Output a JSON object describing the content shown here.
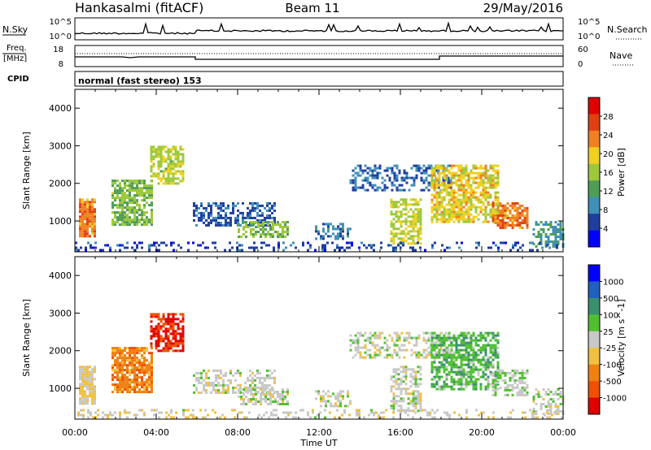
{
  "header": {
    "station": "Hankasalmi (fitACF)",
    "beam": "Beam 11",
    "date": "29/May/2016"
  },
  "panels": {
    "nsky": {
      "label": "N.Sky",
      "ytop": "10^5",
      "ybottom": "10^0",
      "right_label": "N.Search",
      "right_top": "10^5",
      "right_bottom": "10^0"
    },
    "freq": {
      "label_top": "Freq.",
      "label_unit": "[MHz]",
      "ytop": "18",
      "ybottom": "8",
      "right_label": "Nave",
      "right_top": "60",
      "right_bottom": "0"
    },
    "cpid": {
      "label": "CPID",
      "text": "normal (fast stereo) 153"
    }
  },
  "time_axis": {
    "title": "Time UT",
    "ticks": [
      "00:00",
      "04:00",
      "08:00",
      "12:00",
      "16:00",
      "20:00",
      "00:00"
    ]
  },
  "colors": {
    "power": [
      "#0000ff",
      "#1e3ea0",
      "#3f8fb8",
      "#4f9e58",
      "#9dc83a",
      "#f0d020",
      "#f08020",
      "#e04010",
      "#e00000"
    ],
    "velocity": [
      "#0000ff",
      "#2060c0",
      "#3a8f6e",
      "#50c030",
      "#c8c8c8",
      "#f0c040",
      "#f08010",
      "#f05000",
      "#e00000"
    ]
  },
  "chart_data": [
    {
      "type": "heatmap",
      "name": "power",
      "ylabel": "Slant Range [km]",
      "xlabel": "",
      "yticks": [
        "1000",
        "2000",
        "3000",
        "4000"
      ],
      "xlim_hours": [
        0,
        24
      ],
      "ylim_km": [
        180,
        4500
      ],
      "colorbar": {
        "title": "Power [dB]",
        "ticks": [
          "4",
          "8",
          "12",
          "16",
          "20",
          "24",
          "28"
        ],
        "range": [
          0,
          30
        ]
      },
      "blobs": [
        {
          "t0": 0.2,
          "t1": 1.0,
          "r0": 600,
          "r1": 1600,
          "v": 22,
          "d": 0.9
        },
        {
          "t0": 1.8,
          "t1": 3.8,
          "r0": 900,
          "r1": 2100,
          "v": 14,
          "d": 0.75
        },
        {
          "t0": 3.7,
          "t1": 5.3,
          "r0": 2000,
          "r1": 3000,
          "v": 16,
          "d": 0.7
        },
        {
          "t0": 5.8,
          "t1": 9.8,
          "r0": 900,
          "r1": 1500,
          "v": 6,
          "d": 0.5
        },
        {
          "t0": 8.0,
          "t1": 10.5,
          "r0": 600,
          "r1": 1000,
          "v": 14,
          "d": 0.6
        },
        {
          "t0": 11.8,
          "t1": 13.5,
          "r0": 500,
          "r1": 950,
          "v": 8,
          "d": 0.45
        },
        {
          "t0": 15.5,
          "t1": 17.0,
          "r0": 400,
          "r1": 1600,
          "v": 16,
          "d": 0.65
        },
        {
          "t0": 13.5,
          "t1": 18.5,
          "r0": 1800,
          "r1": 2500,
          "v": 7,
          "d": 0.45
        },
        {
          "t0": 17.5,
          "t1": 20.8,
          "r0": 1000,
          "r1": 2500,
          "v": 18,
          "d": 0.7
        },
        {
          "t0": 20.5,
          "t1": 22.2,
          "r0": 800,
          "r1": 1500,
          "v": 22,
          "d": 0.65
        },
        {
          "t0": 22.5,
          "t1": 24.0,
          "r0": 300,
          "r1": 1000,
          "v": 10,
          "d": 0.45
        },
        {
          "t0": 0.0,
          "t1": 24.0,
          "r0": 200,
          "r1": 450,
          "v": 5,
          "d": 0.25
        }
      ]
    },
    {
      "type": "heatmap",
      "name": "velocity",
      "ylabel": "Slant Range [km]",
      "xlabel": "Time UT",
      "yticks": [
        "1000",
        "2000",
        "3000",
        "4000"
      ],
      "xlim_hours": [
        0,
        24
      ],
      "ylim_km": [
        180,
        4500
      ],
      "colorbar": {
        "title": "Velocity [m s^-1]",
        "ticks": [
          "1000",
          "500",
          "100",
          "25",
          "-25",
          "-100",
          "-500",
          "-1000"
        ],
        "range": [
          -1000,
          1000
        ]
      },
      "blobs": [
        {
          "t0": 0.2,
          "t1": 1.0,
          "r0": 600,
          "r1": 1600,
          "v": -150,
          "d": 0.85
        },
        {
          "t0": 1.8,
          "t1": 3.8,
          "r0": 900,
          "r1": 2100,
          "v": -450,
          "d": 0.8
        },
        {
          "t0": 3.7,
          "t1": 5.3,
          "r0": 2000,
          "r1": 3000,
          "v": -800,
          "d": 0.7
        },
        {
          "t0": 5.8,
          "t1": 9.8,
          "r0": 900,
          "r1": 1500,
          "v": 0,
          "d": 0.45
        },
        {
          "t0": 8.0,
          "t1": 10.5,
          "r0": 600,
          "r1": 1000,
          "v": 0,
          "d": 0.6
        },
        {
          "t0": 11.8,
          "t1": 13.5,
          "r0": 500,
          "r1": 950,
          "v": 0,
          "d": 0.45
        },
        {
          "t0": 15.5,
          "t1": 17.0,
          "r0": 400,
          "r1": 1600,
          "v": 0,
          "d": 0.6
        },
        {
          "t0": 13.5,
          "t1": 18.5,
          "r0": 1800,
          "r1": 2500,
          "v": 0,
          "d": 0.45
        },
        {
          "t0": 17.5,
          "t1": 20.8,
          "r0": 1000,
          "r1": 2500,
          "v": 250,
          "d": 0.65
        },
        {
          "t0": 20.5,
          "t1": 22.2,
          "r0": 800,
          "r1": 1500,
          "v": 80,
          "d": 0.55
        },
        {
          "t0": 22.5,
          "t1": 24.0,
          "r0": 300,
          "r1": 1000,
          "v": 0,
          "d": 0.45
        },
        {
          "t0": 0.0,
          "t1": 24.0,
          "r0": 200,
          "r1": 450,
          "v": -60,
          "d": 0.25
        }
      ]
    }
  ]
}
